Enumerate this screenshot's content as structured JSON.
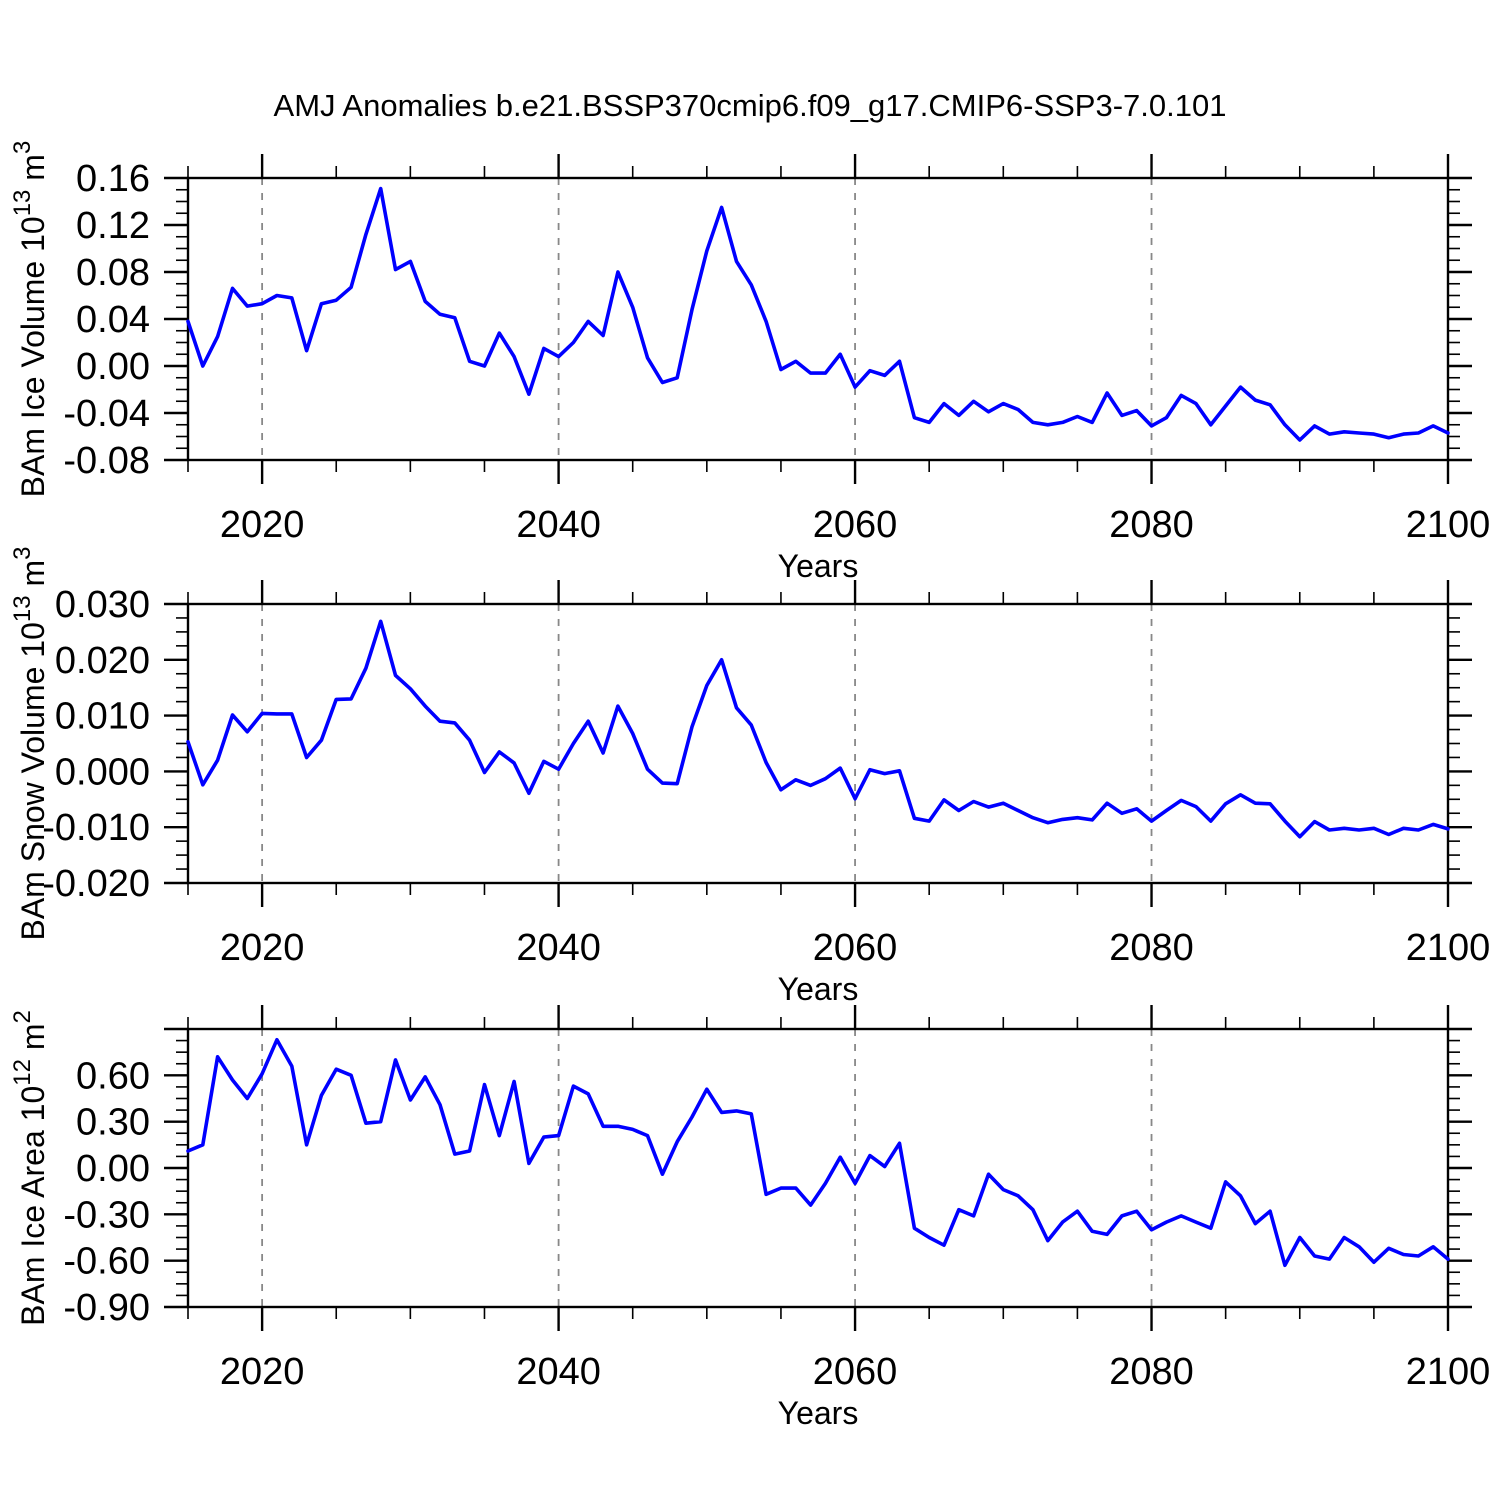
{
  "title": "AMJ Anomalies b.e21.BSSP370cmip6.f09_g17.CMIP6-SSP3-7.0.101",
  "colors": {
    "line": "#0000ff",
    "grid": "#888888",
    "frame": "#000000",
    "background": "#ffffff"
  },
  "x_axis": {
    "label": "Years",
    "start": 2015,
    "end": 2100,
    "major_ticks": [
      2020,
      2040,
      2060,
      2080,
      2100
    ],
    "major_tick_labels": [
      "2020",
      "2040",
      "2060",
      "2080",
      "2100"
    ],
    "minor_step": 5,
    "gridlines": [
      2020,
      2040,
      2060,
      2080
    ]
  },
  "chart_data": [
    {
      "type": "line",
      "id": "ice-volume",
      "ylabel": "BAm Ice Volume 10^13 m^3",
      "ylabel_segments": [
        {
          "t": "BAm Ice Volume 10"
        },
        {
          "t": "13",
          "sup": true
        },
        {
          "t": " m"
        },
        {
          "t": "3",
          "sup": true
        }
      ],
      "xlabel": "Years",
      "xlim": [
        2015,
        2100
      ],
      "ylim": [
        -0.08,
        0.16
      ],
      "ytick_vals": [
        0.16,
        0.12,
        0.08,
        0.04,
        0.0,
        -0.04,
        -0.08
      ],
      "ytick_labels": [
        "0.16",
        "0.12",
        "0.08",
        "0.04",
        "0.00",
        "-0.04",
        "-0.08"
      ],
      "y_major_step": 0.04,
      "y_minor_step": 0.01,
      "grid": true,
      "legend": "none",
      "values": [
        0.038,
        0.0,
        0.025,
        0.066,
        0.051,
        0.053,
        0.06,
        0.058,
        0.013,
        0.053,
        0.056,
        0.067,
        0.112,
        0.151,
        0.082,
        0.089,
        0.055,
        0.044,
        0.041,
        0.004,
        0.0,
        0.028,
        0.008,
        -0.024,
        0.015,
        0.008,
        0.02,
        0.038,
        0.026,
        0.08,
        0.05,
        0.007,
        -0.014,
        -0.01,
        0.048,
        0.098,
        0.135,
        0.089,
        0.069,
        0.038,
        -0.003,
        0.004,
        -0.006,
        -0.006,
        0.01,
        -0.018,
        -0.004,
        -0.008,
        0.004,
        -0.044,
        -0.048,
        -0.032,
        -0.042,
        -0.03,
        -0.039,
        -0.032,
        -0.037,
        -0.048,
        -0.05,
        -0.048,
        -0.043,
        -0.048,
        -0.023,
        -0.042,
        -0.038,
        -0.051,
        -0.044,
        -0.025,
        -0.032,
        -0.05,
        -0.034,
        -0.018,
        -0.029,
        -0.033,
        -0.05,
        -0.063,
        -0.051,
        -0.058,
        -0.056,
        -0.057,
        -0.058,
        -0.061,
        -0.058,
        -0.057,
        -0.051,
        -0.057
      ]
    },
    {
      "type": "line",
      "id": "snow-volume",
      "ylabel": "BAm Snow Volume 10^13 m^3",
      "ylabel_segments": [
        {
          "t": "BAm Snow Volume 10"
        },
        {
          "t": "13",
          "sup": true
        },
        {
          "t": " m"
        },
        {
          "t": "3",
          "sup": true
        }
      ],
      "xlabel": "Years",
      "xlim": [
        2015,
        2100
      ],
      "ylim": [
        -0.02,
        0.03
      ],
      "ytick_vals": [
        0.03,
        0.02,
        0.01,
        0.0,
        -0.01,
        -0.02
      ],
      "ytick_labels": [
        "0.030",
        "0.020",
        "0.010",
        "0.000",
        "-0.010",
        "-0.020"
      ],
      "y_major_step": 0.01,
      "y_minor_step": 0.0025,
      "grid": true,
      "legend": "none",
      "values": [
        0.0053,
        -0.0024,
        0.002,
        0.0101,
        0.0071,
        0.0104,
        0.0103,
        0.0103,
        0.0025,
        0.0056,
        0.0129,
        0.013,
        0.0185,
        0.0269,
        0.0172,
        0.0148,
        0.0117,
        0.009,
        0.0087,
        0.0056,
        -0.0002,
        0.0035,
        0.0015,
        -0.0039,
        0.0018,
        0.0004,
        0.005,
        0.009,
        0.0033,
        0.0117,
        0.0068,
        0.0004,
        -0.0021,
        -0.0022,
        0.008,
        0.0154,
        0.02,
        0.0114,
        0.0083,
        0.0016,
        -0.0033,
        -0.0015,
        -0.0025,
        -0.0013,
        0.0006,
        -0.0049,
        0.0003,
        -0.0004,
        0.0001,
        -0.0084,
        -0.0089,
        -0.0051,
        -0.007,
        -0.0054,
        -0.0064,
        -0.0057,
        -0.007,
        -0.0083,
        -0.0092,
        -0.0086,
        -0.0083,
        -0.0087,
        -0.0057,
        -0.0075,
        -0.0067,
        -0.0089,
        -0.007,
        -0.0052,
        -0.0063,
        -0.0089,
        -0.0058,
        -0.0042,
        -0.0057,
        -0.0058,
        -0.0089,
        -0.0117,
        -0.009,
        -0.0105,
        -0.0102,
        -0.0105,
        -0.0102,
        -0.0113,
        -0.0102,
        -0.0105,
        -0.0095,
        -0.0103
      ]
    },
    {
      "type": "line",
      "id": "ice-area",
      "ylabel": "BAm Ice Area 10^12 m^2",
      "ylabel_segments": [
        {
          "t": "BAm Ice Area 10"
        },
        {
          "t": "12",
          "sup": true
        },
        {
          "t": " m"
        },
        {
          "t": "2",
          "sup": true
        }
      ],
      "xlabel": "Years",
      "xlim": [
        2015,
        2100
      ],
      "ylim": [
        -0.9,
        0.9
      ],
      "ytick_vals": [
        0.6,
        0.3,
        0.0,
        -0.3,
        -0.6,
        -0.9
      ],
      "ytick_labels": [
        "0.60",
        "0.30",
        "0.00",
        "-0.30",
        "-0.60",
        "-0.90"
      ],
      "y_major_step": 0.3,
      "y_minor_step": 0.075,
      "grid": true,
      "legend": "none",
      "values": [
        0.11,
        0.15,
        0.72,
        0.57,
        0.45,
        0.61,
        0.83,
        0.66,
        0.15,
        0.47,
        0.64,
        0.6,
        0.29,
        0.3,
        0.7,
        0.44,
        0.59,
        0.41,
        0.09,
        0.11,
        0.54,
        0.21,
        0.56,
        0.03,
        0.2,
        0.21,
        0.53,
        0.48,
        0.27,
        0.27,
        0.25,
        0.21,
        -0.04,
        0.17,
        0.33,
        0.51,
        0.36,
        0.37,
        0.35,
        -0.17,
        -0.13,
        -0.13,
        -0.24,
        -0.1,
        0.07,
        -0.1,
        0.08,
        0.01,
        0.16,
        -0.39,
        -0.45,
        -0.5,
        -0.27,
        -0.31,
        -0.04,
        -0.14,
        -0.18,
        -0.27,
        -0.47,
        -0.35,
        -0.28,
        -0.41,
        -0.43,
        -0.31,
        -0.28,
        -0.4,
        -0.35,
        -0.31,
        -0.35,
        -0.39,
        -0.09,
        -0.18,
        -0.36,
        -0.28,
        -0.63,
        -0.45,
        -0.57,
        -0.59,
        -0.45,
        -0.51,
        -0.61,
        -0.52,
        -0.56,
        -0.57,
        -0.51,
        -0.59
      ]
    }
  ]
}
